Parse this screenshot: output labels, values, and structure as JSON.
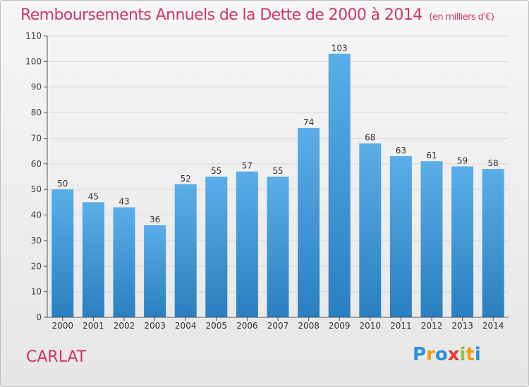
{
  "title": "Remboursements Annuels de la Dette de 2000 à 2014",
  "title_unit": "(en milliers d'€)",
  "commune": "CARLAT",
  "logo": {
    "letters": [
      "P",
      "r",
      "o",
      "x",
      "i",
      "t",
      "i"
    ],
    "colors": [
      "#2e8fd6",
      "#f39c12",
      "#2e8fd6",
      "#e53935",
      "#8bc34a",
      "#f39c12",
      "#2e8fd6"
    ]
  },
  "chart_data": {
    "type": "bar",
    "title": "Remboursements Annuels de la Dette de 2000 à 2014",
    "categories": [
      "2000",
      "2001",
      "2002",
      "2003",
      "2004",
      "2005",
      "2006",
      "2007",
      "2008",
      "2009",
      "2010",
      "2011",
      "2012",
      "2013",
      "2014"
    ],
    "values": [
      50,
      45,
      43,
      36,
      52,
      55,
      57,
      55,
      74,
      103,
      68,
      63,
      61,
      59,
      58
    ],
    "data_labels": [
      "50",
      "45",
      "43",
      "36",
      "52",
      "55",
      "57",
      "55",
      "74",
      "103",
      "68",
      "63",
      "61",
      "59",
      "58"
    ],
    "y_ticks": [
      "0",
      "10",
      "20",
      "30",
      "40",
      "50",
      "60",
      "70",
      "80",
      "90",
      "100",
      "110"
    ],
    "ylim": [
      0,
      110
    ],
    "grid": true,
    "colors": {
      "bar_top": "#5aaee8",
      "bar_bottom": "#2a7fc0",
      "grid": "#d8d8d8",
      "axis": "#555555",
      "title": "#d0356a"
    }
  }
}
